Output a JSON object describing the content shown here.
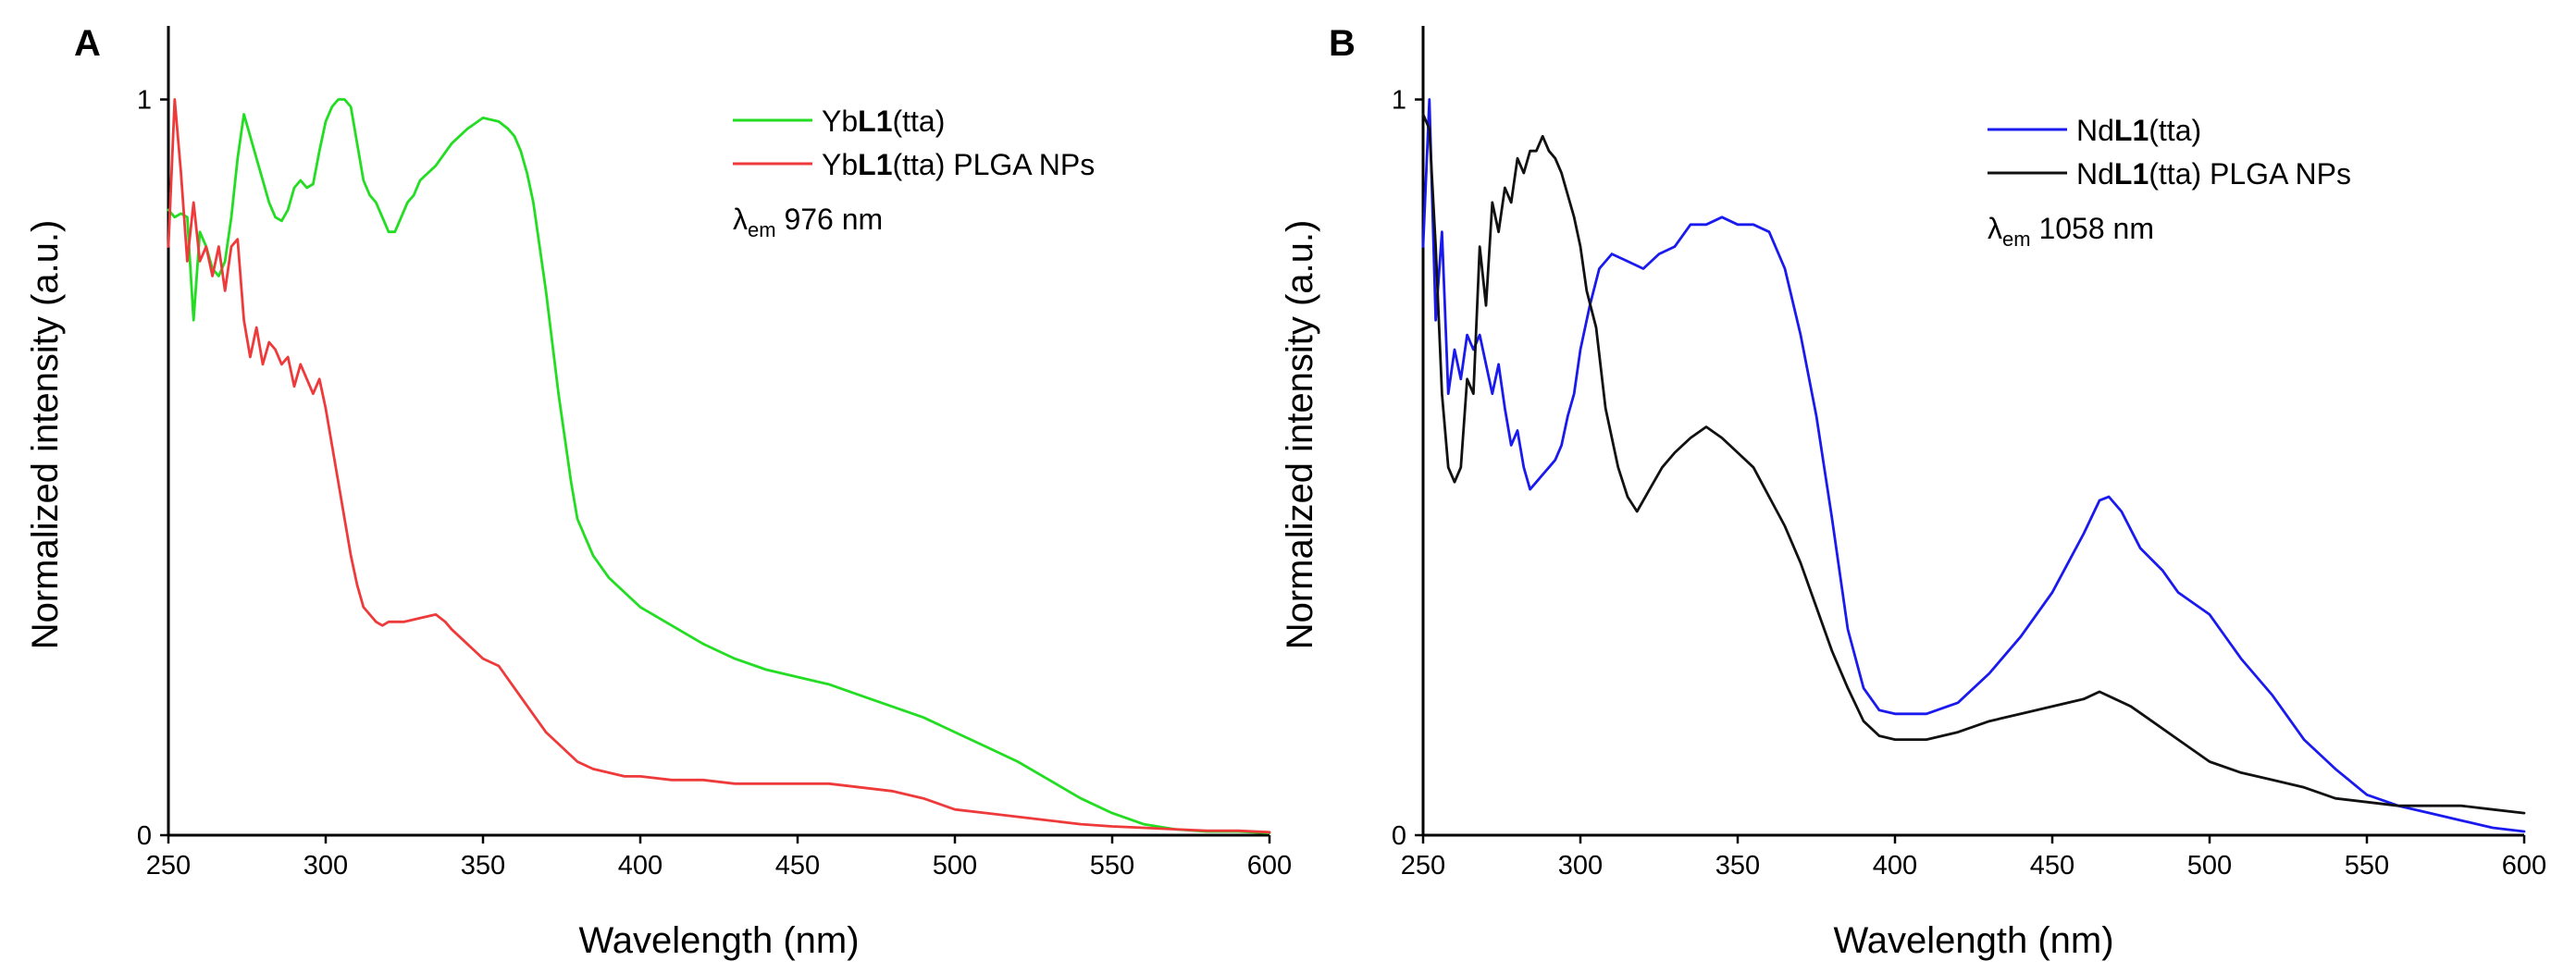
{
  "chart_data": [
    {
      "panel_label": "A",
      "type": "line",
      "xlabel": "Wavelength (nm)",
      "ylabel": "Normalized intensity (a.u.)",
      "xlim": [
        250,
        600
      ],
      "ylim": [
        0,
        1.1
      ],
      "xticks": [
        250,
        300,
        350,
        400,
        450,
        500,
        550,
        600
      ],
      "yticks": [
        0,
        1
      ],
      "legend_position": "top-right",
      "annotation": {
        "lambda": "λ",
        "sub": "em",
        "text": " 976 nm"
      },
      "series": [
        {
          "name": "YbL1(tta)",
          "legend": {
            "pre": "Yb",
            "bold": "L1",
            "post": "(tta)"
          },
          "color": "#22dd22",
          "x": [
            250,
            252,
            254,
            256,
            258,
            260,
            262,
            264,
            266,
            268,
            270,
            272,
            274,
            276,
            278,
            280,
            282,
            284,
            286,
            288,
            290,
            292,
            294,
            296,
            298,
            300,
            302,
            304,
            306,
            308,
            310,
            312,
            314,
            316,
            318,
            320,
            322,
            324,
            326,
            328,
            330,
            335,
            340,
            345,
            350,
            355,
            358,
            360,
            362,
            364,
            366,
            368,
            370,
            372,
            374,
            376,
            378,
            380,
            385,
            390,
            395,
            400,
            410,
            420,
            430,
            440,
            450,
            460,
            470,
            480,
            490,
            500,
            510,
            520,
            530,
            540,
            550,
            560,
            570,
            580,
            590,
            600
          ],
          "y": [
            0.85,
            0.84,
            0.845,
            0.84,
            0.7,
            0.82,
            0.8,
            0.77,
            0.76,
            0.78,
            0.84,
            0.92,
            0.98,
            0.95,
            0.92,
            0.89,
            0.86,
            0.84,
            0.835,
            0.85,
            0.88,
            0.89,
            0.88,
            0.885,
            0.93,
            0.97,
            0.99,
            1.0,
            1.0,
            0.99,
            0.94,
            0.89,
            0.87,
            0.86,
            0.84,
            0.82,
            0.82,
            0.84,
            0.86,
            0.87,
            0.89,
            0.91,
            0.94,
            0.96,
            0.975,
            0.97,
            0.96,
            0.95,
            0.93,
            0.9,
            0.86,
            0.8,
            0.74,
            0.67,
            0.6,
            0.54,
            0.48,
            0.43,
            0.38,
            0.35,
            0.33,
            0.31,
            0.285,
            0.26,
            0.24,
            0.225,
            0.215,
            0.205,
            0.19,
            0.175,
            0.16,
            0.14,
            0.12,
            0.1,
            0.075,
            0.05,
            0.03,
            0.015,
            0.008,
            0.005,
            0.005,
            0.003
          ]
        },
        {
          "name": "YbL1(tta) PLGA NPs",
          "legend": {
            "pre": "Yb",
            "bold": "L1",
            "post": "(tta) PLGA NPs"
          },
          "color": "#ee3a3a",
          "x": [
            250,
            252,
            254,
            256,
            258,
            260,
            262,
            264,
            266,
            268,
            270,
            272,
            274,
            276,
            278,
            280,
            282,
            284,
            286,
            288,
            290,
            292,
            294,
            296,
            298,
            300,
            302,
            304,
            306,
            308,
            310,
            312,
            314,
            316,
            318,
            320,
            325,
            330,
            335,
            338,
            340,
            345,
            350,
            355,
            360,
            365,
            370,
            375,
            380,
            385,
            390,
            395,
            400,
            410,
            420,
            430,
            440,
            450,
            460,
            470,
            480,
            490,
            500,
            510,
            520,
            530,
            540,
            550,
            560,
            570,
            580,
            590,
            600
          ],
          "y": [
            0.8,
            1.0,
            0.9,
            0.78,
            0.86,
            0.78,
            0.8,
            0.76,
            0.8,
            0.74,
            0.8,
            0.81,
            0.7,
            0.65,
            0.69,
            0.64,
            0.67,
            0.66,
            0.64,
            0.65,
            0.61,
            0.64,
            0.62,
            0.6,
            0.62,
            0.58,
            0.53,
            0.48,
            0.43,
            0.38,
            0.34,
            0.31,
            0.3,
            0.29,
            0.285,
            0.29,
            0.29,
            0.295,
            0.3,
            0.29,
            0.28,
            0.26,
            0.24,
            0.23,
            0.2,
            0.17,
            0.14,
            0.12,
            0.1,
            0.09,
            0.085,
            0.08,
            0.08,
            0.075,
            0.075,
            0.07,
            0.07,
            0.07,
            0.07,
            0.065,
            0.06,
            0.05,
            0.035,
            0.03,
            0.025,
            0.02,
            0.015,
            0.012,
            0.01,
            0.008,
            0.006,
            0.006,
            0.004
          ]
        }
      ]
    },
    {
      "panel_label": "B",
      "type": "line",
      "xlabel": "Wavelength (nm)",
      "ylabel": "Normalized intensity (a.u.)",
      "xlim": [
        250,
        600
      ],
      "ylim": [
        0,
        1.1
      ],
      "xticks": [
        250,
        300,
        350,
        400,
        450,
        500,
        550,
        600
      ],
      "yticks": [
        0,
        1
      ],
      "legend_position": "top-right",
      "annotation": {
        "lambda": "λ",
        "sub": "em",
        "text": " 1058 nm"
      },
      "series": [
        {
          "name": "NdL1(tta)",
          "legend": {
            "pre": "Nd",
            "bold": "L1",
            "post": "(tta)"
          },
          "color": "#1a1aee",
          "x": [
            250,
            252,
            254,
            256,
            258,
            260,
            262,
            264,
            266,
            268,
            270,
            272,
            274,
            276,
            278,
            280,
            282,
            284,
            286,
            288,
            290,
            292,
            294,
            296,
            298,
            300,
            303,
            306,
            310,
            315,
            320,
            325,
            330,
            335,
            340,
            345,
            350,
            355,
            360,
            365,
            370,
            375,
            380,
            385,
            390,
            395,
            400,
            410,
            420,
            430,
            440,
            450,
            455,
            460,
            465,
            468,
            472,
            478,
            485,
            490,
            500,
            510,
            520,
            530,
            540,
            550,
            560,
            570,
            580,
            590,
            600
          ],
          "y": [
            0.8,
            1.0,
            0.7,
            0.82,
            0.6,
            0.66,
            0.62,
            0.68,
            0.66,
            0.68,
            0.64,
            0.6,
            0.64,
            0.58,
            0.53,
            0.55,
            0.5,
            0.47,
            0.48,
            0.49,
            0.5,
            0.51,
            0.53,
            0.57,
            0.6,
            0.66,
            0.72,
            0.77,
            0.79,
            0.78,
            0.77,
            0.79,
            0.8,
            0.83,
            0.83,
            0.84,
            0.83,
            0.83,
            0.82,
            0.77,
            0.68,
            0.57,
            0.43,
            0.28,
            0.2,
            0.17,
            0.165,
            0.165,
            0.18,
            0.22,
            0.27,
            0.33,
            0.37,
            0.41,
            0.455,
            0.46,
            0.44,
            0.39,
            0.36,
            0.33,
            0.3,
            0.24,
            0.19,
            0.13,
            0.09,
            0.055,
            0.04,
            0.03,
            0.02,
            0.01,
            0.005
          ]
        },
        {
          "name": "NdL1(tta) PLGA NPs",
          "legend": {
            "pre": "Nd",
            "bold": "L1",
            "post": "(tta) PLGA NPs"
          },
          "color": "#111111",
          "x": [
            250,
            252,
            254,
            256,
            258,
            260,
            262,
            264,
            266,
            268,
            270,
            272,
            274,
            276,
            278,
            280,
            282,
            284,
            286,
            288,
            290,
            292,
            294,
            296,
            298,
            300,
            302,
            305,
            308,
            312,
            315,
            318,
            322,
            326,
            330,
            335,
            340,
            345,
            350,
            355,
            360,
            365,
            370,
            375,
            380,
            385,
            390,
            395,
            400,
            410,
            420,
            430,
            440,
            450,
            460,
            465,
            470,
            475,
            480,
            490,
            500,
            510,
            520,
            530,
            540,
            550,
            560,
            570,
            580,
            590,
            600
          ],
          "y": [
            0.98,
            0.96,
            0.8,
            0.6,
            0.5,
            0.48,
            0.5,
            0.62,
            0.6,
            0.8,
            0.72,
            0.86,
            0.82,
            0.88,
            0.86,
            0.92,
            0.9,
            0.93,
            0.93,
            0.95,
            0.93,
            0.92,
            0.9,
            0.87,
            0.84,
            0.8,
            0.74,
            0.69,
            0.58,
            0.5,
            0.46,
            0.44,
            0.47,
            0.5,
            0.52,
            0.54,
            0.555,
            0.54,
            0.52,
            0.5,
            0.46,
            0.42,
            0.37,
            0.31,
            0.25,
            0.2,
            0.155,
            0.135,
            0.13,
            0.13,
            0.14,
            0.155,
            0.165,
            0.175,
            0.185,
            0.195,
            0.185,
            0.175,
            0.16,
            0.13,
            0.1,
            0.085,
            0.075,
            0.065,
            0.05,
            0.045,
            0.04,
            0.04,
            0.04,
            0.035,
            0.03
          ]
        }
      ]
    }
  ]
}
